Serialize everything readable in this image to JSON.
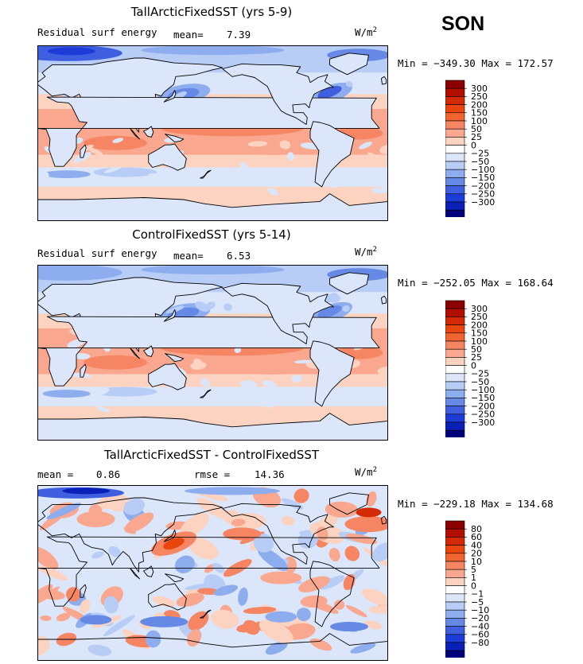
{
  "season": "SON",
  "units": "W/m",
  "units_sup": "2",
  "panels": [
    {
      "title": "TallArcticFixedSST (yrs 5-9)",
      "label": "Residual surf energy",
      "mean_label": "mean=",
      "mean_value": "7.39",
      "min_label": "Min = ",
      "min_value": "−349.30",
      "max_label": "Max = ",
      "max_value": "172.57",
      "cmap": "abs"
    },
    {
      "title": "ControlFixedSST (yrs 5-14)",
      "label": "Residual surf energy",
      "mean_label": "mean=",
      "mean_value": "6.53",
      "min_label": "Min = ",
      "min_value": "−252.05",
      "max_label": "Max = ",
      "max_value": "168.64",
      "cmap": "abs"
    },
    {
      "title": "TallArcticFixedSST - ControlFixedSST",
      "mean_label": "mean =",
      "mean_value": "0.86",
      "rmse_label": "rmse =",
      "rmse_value": "14.36",
      "min_label": "Min = ",
      "min_value": "−229.18",
      "max_label": "Max = ",
      "max_value": "134.68",
      "cmap": "diff"
    }
  ],
  "colorbars": {
    "abs": {
      "labels": [
        "300",
        "250",
        "200",
        "150",
        "100",
        "50",
        "25",
        "0",
        "−25",
        "−50",
        "−100",
        "−150",
        "−200",
        "−250",
        "−300"
      ],
      "colors": [
        "#8b0000",
        "#b30f00",
        "#d42a05",
        "#e9450f",
        "#f26430",
        "#f68563",
        "#f9a88f",
        "#fcd3c1",
        "#ffffff",
        "#dbe6fa",
        "#b7cdf5",
        "#8eadee",
        "#6689e6",
        "#3f5fe0",
        "#1d3bd6",
        "#0a1fb8",
        "#00007a"
      ]
    },
    "diff": {
      "labels": [
        "80",
        "60",
        "40",
        "20",
        "10",
        "5",
        "1",
        "0",
        "−1",
        "−5",
        "−10",
        "−20",
        "−40",
        "−60",
        "−80"
      ],
      "colors": [
        "#8b0000",
        "#b30f00",
        "#d42a05",
        "#e9450f",
        "#f26430",
        "#f68563",
        "#f9a88f",
        "#fcd3c1",
        "#ffffff",
        "#dbe6fa",
        "#b7cdf5",
        "#8eadee",
        "#6689e6",
        "#3f5fe0",
        "#1d3bd6",
        "#0a1fb8",
        "#00007a"
      ]
    }
  },
  "chart_data": [
    {
      "type": "heatmap",
      "title": "TallArcticFixedSST (yrs 5-9)",
      "subtitle": "Residual surf energy",
      "units": "W/m2",
      "mean": 7.39,
      "min": -349.3,
      "max": 172.57,
      "contour_levels": [
        -300,
        -250,
        -200,
        -150,
        -100,
        -50,
        -25,
        0,
        25,
        50,
        100,
        150,
        200,
        250,
        300
      ],
      "season": "SON"
    },
    {
      "type": "heatmap",
      "title": "ControlFixedSST (yrs 5-14)",
      "subtitle": "Residual surf energy",
      "units": "W/m2",
      "mean": 6.53,
      "min": -252.05,
      "max": 168.64,
      "contour_levels": [
        -300,
        -250,
        -200,
        -150,
        -100,
        -50,
        -25,
        0,
        25,
        50,
        100,
        150,
        200,
        250,
        300
      ],
      "season": "SON"
    },
    {
      "type": "heatmap",
      "title": "TallArcticFixedSST - ControlFixedSST",
      "units": "W/m2",
      "mean": 0.86,
      "rmse": 14.36,
      "min": -229.18,
      "max": 134.68,
      "contour_levels": [
        -80,
        -60,
        -40,
        -20,
        -10,
        -5,
        -1,
        0,
        1,
        5,
        10,
        20,
        40,
        60,
        80
      ],
      "season": "SON"
    }
  ]
}
